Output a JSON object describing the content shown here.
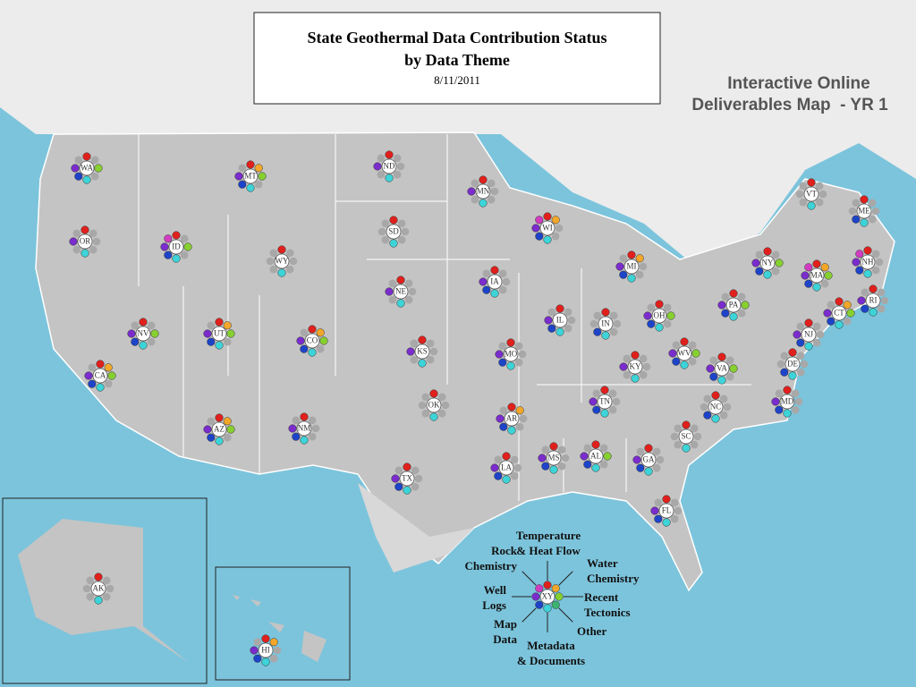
{
  "header": {
    "title_lines": [
      "State Geothermal Data Contribution Status",
      "by Data Theme"
    ],
    "date": "8/11/2011",
    "side_note_lines": [
      "Interactive Online",
      "Deliverables Map  - YR 1"
    ]
  },
  "legend": {
    "center": "XY",
    "themes": [
      {
        "lines": [
          "Temperature",
          "& Heat Flow"
        ],
        "color": "#e0201c"
      },
      {
        "lines": [
          "Water",
          "Chemistry"
        ],
        "color": "#f2a72a"
      },
      {
        "lines": [
          "Recent",
          "Tectonics"
        ],
        "color": "#86d030"
      },
      {
        "lines": [
          "Other"
        ],
        "color": "#3cb36e"
      },
      {
        "lines": [
          "Metadata",
          "& Documents"
        ],
        "color": "#3cd4d8"
      },
      {
        "lines": [
          "Map",
          "Data"
        ],
        "color": "#1d44c8"
      },
      {
        "lines": [
          "Well",
          "Logs"
        ],
        "color": "#7a2ccc"
      },
      {
        "lines": [
          "Rock",
          "Chemistry"
        ],
        "color": "#d03cc0"
      }
    ],
    "missing_color": "#a8a8a8"
  },
  "states": [
    {
      "label": "WA",
      "themes": [
        0,
        2,
        4,
        5,
        6
      ]
    },
    {
      "label": "OR",
      "themes": [
        0,
        4,
        6
      ]
    },
    {
      "label": "CA",
      "themes": [
        0,
        1,
        2,
        4,
        5,
        6
      ]
    },
    {
      "label": "NV",
      "themes": [
        0,
        2,
        4,
        5,
        6
      ]
    },
    {
      "label": "ID",
      "themes": [
        0,
        2,
        4,
        5,
        6,
        7
      ]
    },
    {
      "label": "MT",
      "themes": [
        0,
        1,
        2,
        4,
        5,
        6
      ]
    },
    {
      "label": "WY",
      "themes": [
        0,
        4
      ]
    },
    {
      "label": "UT",
      "themes": [
        0,
        1,
        2,
        4,
        5,
        6
      ]
    },
    {
      "label": "CO",
      "themes": [
        0,
        1,
        2,
        4,
        5,
        6
      ]
    },
    {
      "label": "AZ",
      "themes": [
        0,
        1,
        2,
        4,
        5,
        6
      ]
    },
    {
      "label": "NM",
      "themes": [
        0,
        4,
        5,
        6
      ]
    },
    {
      "label": "ND",
      "themes": [
        0,
        4,
        6
      ]
    },
    {
      "label": "SD",
      "themes": [
        0,
        4
      ]
    },
    {
      "label": "NE",
      "themes": [
        0,
        4,
        6
      ]
    },
    {
      "label": "KS",
      "themes": [
        0,
        4,
        6
      ]
    },
    {
      "label": "OK",
      "themes": [
        0,
        4
      ]
    },
    {
      "label": "TX",
      "themes": [
        0,
        4,
        5,
        6
      ]
    },
    {
      "label": "MN",
      "themes": [
        0,
        4,
        6
      ]
    },
    {
      "label": "IA",
      "themes": [
        0,
        4,
        5,
        6
      ]
    },
    {
      "label": "MO",
      "themes": [
        0,
        4,
        5,
        6
      ]
    },
    {
      "label": "AR",
      "themes": [
        0,
        1,
        4,
        5,
        6
      ]
    },
    {
      "label": "LA",
      "themes": [
        0,
        4,
        5,
        6
      ]
    },
    {
      "label": "WI",
      "themes": [
        0,
        1,
        4,
        5,
        6,
        7
      ]
    },
    {
      "label": "IL",
      "themes": [
        0,
        4,
        5,
        6
      ]
    },
    {
      "label": "MI",
      "themes": [
        0,
        1,
        4,
        5,
        6
      ]
    },
    {
      "label": "IN",
      "themes": [
        0,
        4,
        5
      ]
    },
    {
      "label": "OH",
      "themes": [
        0,
        2,
        4,
        5,
        6
      ]
    },
    {
      "label": "KY",
      "themes": [
        0,
        4,
        6
      ]
    },
    {
      "label": "TN",
      "themes": [
        0,
        4,
        5,
        6
      ]
    },
    {
      "label": "MS",
      "themes": [
        0,
        4,
        5,
        6
      ]
    },
    {
      "label": "AL",
      "themes": [
        0,
        2,
        4,
        5,
        6
      ]
    },
    {
      "label": "GA",
      "themes": [
        0,
        4,
        5,
        6
      ]
    },
    {
      "label": "FL",
      "themes": [
        0,
        4,
        5,
        6
      ]
    },
    {
      "label": "SC",
      "themes": [
        0,
        4
      ]
    },
    {
      "label": "NC",
      "themes": [
        0,
        4,
        5
      ]
    },
    {
      "label": "VA",
      "themes": [
        0,
        2,
        4,
        5,
        6
      ]
    },
    {
      "label": "WV",
      "themes": [
        0,
        2,
        4,
        5,
        6
      ]
    },
    {
      "label": "PA",
      "themes": [
        0,
        2,
        4,
        5,
        6
      ]
    },
    {
      "label": "NY",
      "themes": [
        0,
        2,
        4,
        5,
        6
      ]
    },
    {
      "label": "VT",
      "themes": [
        0,
        4
      ]
    },
    {
      "label": "ME",
      "themes": [
        0,
        4,
        5
      ]
    },
    {
      "label": "NH",
      "themes": [
        0,
        4,
        5,
        6,
        7
      ]
    },
    {
      "label": "MA",
      "themes": [
        0,
        1,
        2,
        4,
        5,
        6,
        7
      ]
    },
    {
      "label": "RI",
      "themes": [
        0,
        4,
        5,
        6
      ]
    },
    {
      "label": "CT",
      "themes": [
        0,
        1,
        2,
        4,
        5,
        6
      ]
    },
    {
      "label": "NJ",
      "themes": [
        0,
        4,
        5,
        6
      ]
    },
    {
      "label": "DE",
      "themes": [
        0,
        4,
        5
      ]
    },
    {
      "label": "MD",
      "themes": [
        0,
        4,
        5,
        6
      ]
    },
    {
      "label": "AK",
      "themes": [
        0,
        4
      ]
    },
    {
      "label": "HI",
      "themes": [
        0,
        1,
        4,
        5,
        6
      ]
    }
  ]
}
